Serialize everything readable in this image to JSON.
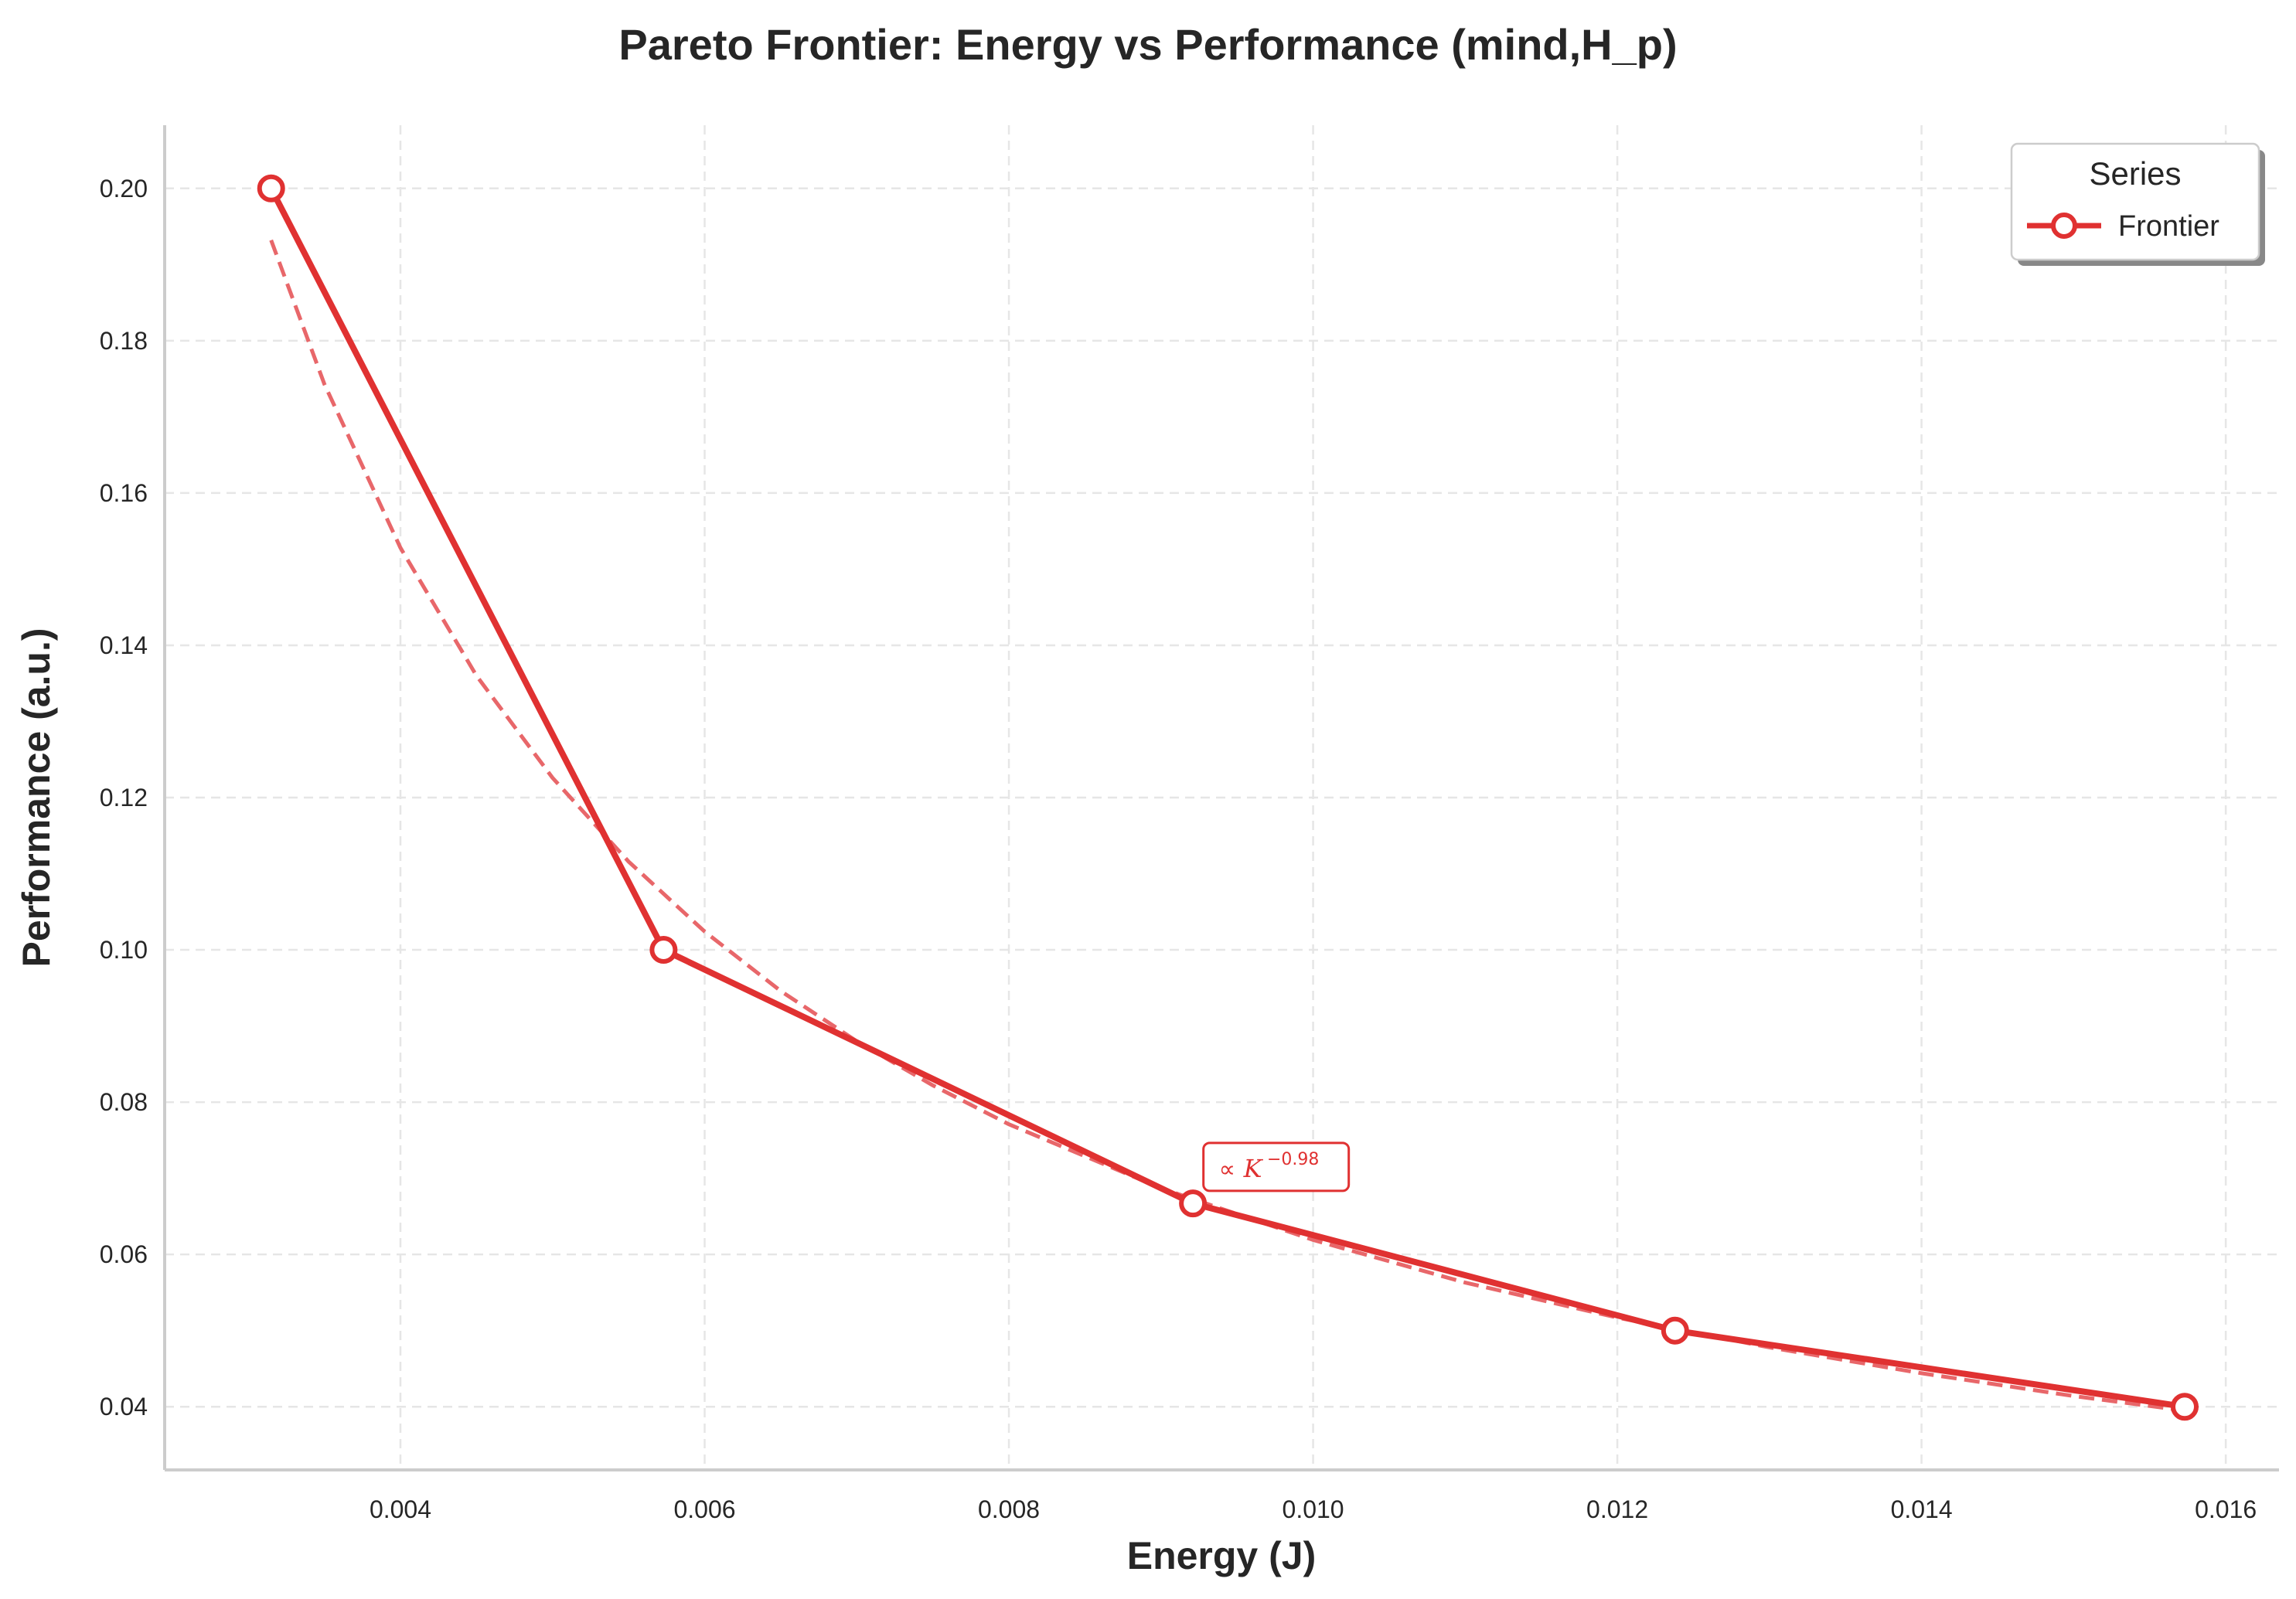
{
  "chart_data": {
    "type": "line",
    "title": "Pareto Frontier: Energy vs Performance (mind,H_p)",
    "xlabel": "Energy (J)",
    "ylabel": "Performance (a.u.)",
    "xlim": [
      0.00245,
      0.01635
    ],
    "ylim": [
      0.0317,
      0.2083
    ],
    "xticks": [
      0.004,
      0.006,
      0.008,
      0.01,
      0.012,
      0.014,
      0.016
    ],
    "xtick_labels": [
      "0.004",
      "0.006",
      "0.008",
      "0.010",
      "0.012",
      "0.014",
      "0.016"
    ],
    "yticks": [
      0.04,
      0.06,
      0.08,
      0.1,
      0.12,
      0.14,
      0.16,
      0.18,
      0.2
    ],
    "ytick_labels": [
      "0.04",
      "0.06",
      "0.08",
      "0.10",
      "0.12",
      "0.14",
      "0.16",
      "0.18",
      "0.20"
    ],
    "grid": true,
    "legend": {
      "title": "Series",
      "placement": "top-right"
    },
    "series": [
      {
        "name": "Frontier",
        "style": "solid line with hollow circle markers",
        "color": "#e03131",
        "x": [
          0.00315,
          0.00573,
          0.00921,
          0.01238,
          0.01573
        ],
        "y": [
          0.2,
          0.1,
          0.0667,
          0.05,
          0.04
        ]
      },
      {
        "style": "dashed power-law fit",
        "color": "#e8676a",
        "x": [
          0.00315,
          0.0035,
          0.004,
          0.0045,
          0.005,
          0.0055,
          0.006,
          0.0065,
          0.007,
          0.0075,
          0.008,
          0.009,
          0.01,
          0.011,
          0.012,
          0.013,
          0.014,
          0.015,
          0.01573
        ],
        "y": [
          0.1932,
          0.1743,
          0.1528,
          0.136,
          0.1226,
          0.1116,
          0.1024,
          0.0946,
          0.088,
          0.0822,
          0.0771,
          0.0687,
          0.0619,
          0.0563,
          0.0517,
          0.0478,
          0.0444,
          0.0414,
          0.0395
        ]
      }
    ],
    "annotation": {
      "prefix": "∝",
      "symbol": "K",
      "exponent": "−0.98",
      "x": 0.00933,
      "y": 0.0718
    }
  }
}
